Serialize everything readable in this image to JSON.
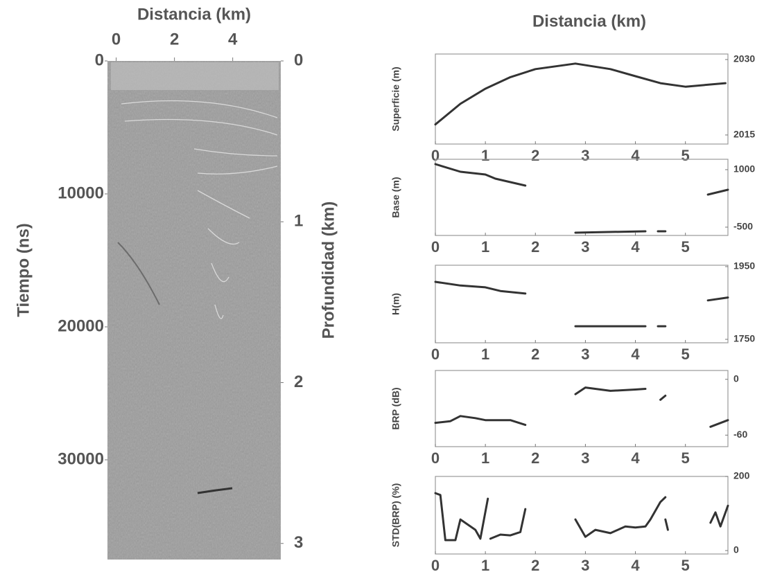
{
  "chart_data": [
    {
      "type": "image",
      "xlabel": "Distancia (km)",
      "ylabel": "Tiempo (ns)",
      "y2label": "Profundidad (km)",
      "xlim": [
        -0.3,
        5.65
      ],
      "xticks": [
        0,
        2,
        4
      ],
      "ylim": [
        0,
        37500
      ],
      "yticks": [
        0,
        10000,
        20000,
        30000
      ],
      "y2lim": [
        0,
        3.1
      ],
      "y2ticks": [
        0,
        1,
        2,
        3
      ]
    },
    {
      "type": "line",
      "title": "Distancia (km)",
      "ylabel": "Superficie (m)",
      "color": "#333333",
      "x": [
        0,
        0.5,
        1,
        1.5,
        2,
        2.8,
        3.5,
        4,
        4.5,
        5,
        5.8
      ],
      "values": [
        2017.1,
        2021.2,
        2024.2,
        2026.5,
        2028.1,
        2029.2,
        2028.1,
        2026.7,
        2025.3,
        2024.6,
        2025.3
      ],
      "xlim": [
        0,
        5.85
      ],
      "xticks": [
        0,
        1,
        2,
        3,
        4,
        5
      ],
      "ylim": [
        2013.2,
        2031.1
      ],
      "yticks": [
        2015,
        2030
      ]
    },
    {
      "type": "line",
      "ylabel": "Base (m)",
      "color": "#333333",
      "x": [
        0,
        0.5,
        1,
        1.2,
        1.8,
        null,
        2.8,
        4.2,
        null,
        4.45,
        4.6,
        null,
        5.45,
        5.85
      ],
      "values": [
        1145,
        946,
        873,
        765,
        584,
        null,
        -645,
        -609,
        null,
        -609,
        -609,
        null,
        349,
        476
      ],
      "xlim": [
        0,
        5.85
      ],
      "xticks": [
        0,
        1,
        2,
        3,
        4,
        5
      ],
      "ylim": [
        -717,
        1271
      ],
      "yticks": [
        1000,
        -500
      ]
    },
    {
      "type": "line",
      "ylabel": "H(m)",
      "color": "#333333",
      "x": [
        0,
        0.5,
        1,
        1.3,
        1.8,
        null,
        2.8,
        4.2,
        null,
        4.45,
        4.6,
        null,
        5.45,
        5.85
      ],
      "values": [
        1908,
        1898,
        1893,
        1883,
        1876,
        null,
        1786,
        1786,
        null,
        1786,
        1786,
        null,
        1857,
        1865
      ],
      "xlim": [
        0,
        5.85
      ],
      "xticks": [
        0,
        1,
        2,
        3,
        4,
        5
      ],
      "ylim": [
        1740.5,
        1953.8
      ],
      "yticks": [
        1950,
        1750
      ]
    },
    {
      "type": "line",
      "ylabel": "BRP (dB)",
      "color": "#333333",
      "x": [
        0,
        0.3,
        0.5,
        0.8,
        1,
        1.5,
        1.8,
        null,
        2.8,
        3,
        3.5,
        4,
        4.2,
        null,
        4.5,
        4.6,
        null,
        5.5,
        5.85
      ],
      "values": [
        -46.8,
        -45,
        -39.5,
        -41.7,
        -43.9,
        -43.9,
        -49,
        null,
        -16,
        -8.8,
        -12.4,
        -11,
        -10.2,
        null,
        -22,
        -17.6,
        null,
        -51,
        -43.9
      ],
      "xlim": [
        0,
        5.85
      ],
      "xticks": [
        0,
        1,
        2,
        3,
        4,
        5
      ],
      "ylim": [
        -72.4,
        9.5
      ],
      "yticks": [
        0,
        -60
      ]
    },
    {
      "type": "line",
      "ylabel": "STD(BRP) (%)",
      "color": "#333333",
      "x": [
        0,
        0.1,
        0.2,
        0.4,
        0.5,
        0.8,
        0.9,
        1.05,
        null,
        1.1,
        1.3,
        1.5,
        1.7,
        1.8,
        null,
        2.8,
        3,
        3.2,
        3.5,
        3.8,
        4,
        4.2,
        4.3,
        4.5,
        4.6,
        null,
        4.6,
        4.65,
        null,
        5.5,
        5.6,
        5.7,
        5.85
      ],
      "values": [
        155,
        150,
        28,
        28,
        84,
        56,
        32,
        140,
        null,
        32,
        43,
        41,
        50,
        112,
        null,
        84,
        37,
        56,
        47,
        65,
        62,
        65,
        84,
        131,
        144,
        null,
        84,
        56,
        null,
        75,
        103,
        65,
        121
      ],
      "xlim": [
        0,
        5.85
      ],
      "xticks": [
        0,
        1,
        2,
        3,
        4,
        5
      ],
      "ylim": [
        -9.3,
        200
      ],
      "yticks": [
        200,
        0
      ]
    }
  ]
}
